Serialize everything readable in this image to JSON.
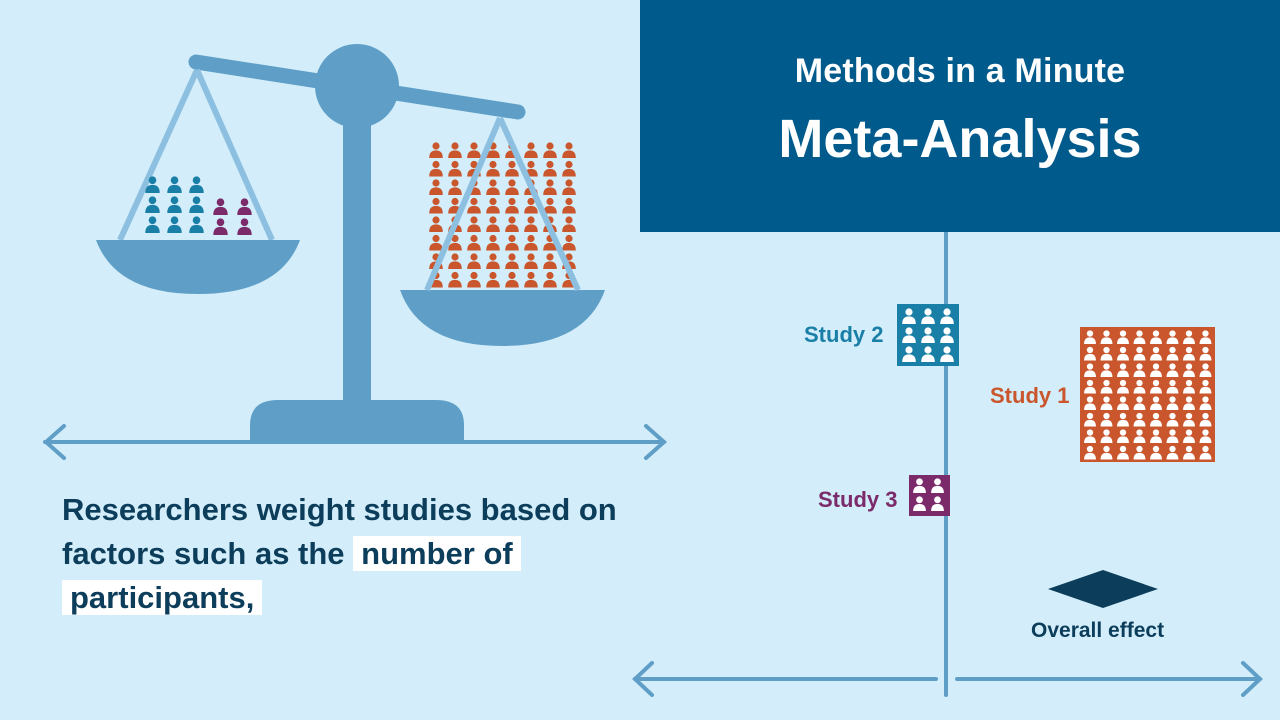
{
  "header": {
    "subtitle": "Methods in a Minute",
    "title": "Meta-Analysis"
  },
  "caption": {
    "line_plain": "Researchers weight studies based on factors such as the ",
    "highlight_1": "number of",
    "highlight_2": "participants,"
  },
  "forest": {
    "study_2": "Study 2",
    "study_1": "Study 1",
    "study_3": "Study 3",
    "overall": "Overall effect"
  },
  "colors": {
    "background": "#d3eefa",
    "header_bg": "#005a8c",
    "scale": "#5f9fc7",
    "study_1": "#c9562c",
    "study_2": "#1a7fa6",
    "study_3": "#7b2b6a",
    "overall": "#0c3d5a"
  }
}
